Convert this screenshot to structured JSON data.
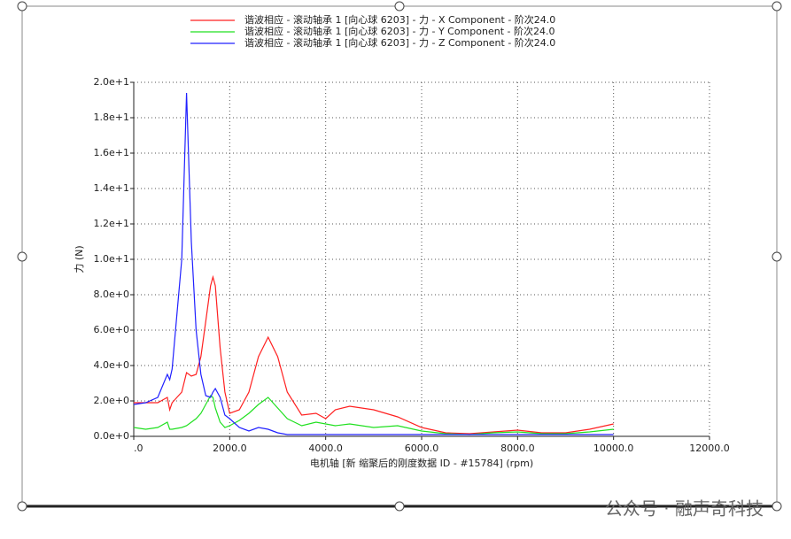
{
  "chart_data": {
    "type": "line",
    "ylabel": "力 (N)",
    "xlabel": "电机轴 [新 缩聚后的刚度数据 ID - #15784] (rpm)",
    "watermark": "公众号 · 融声奇科技",
    "grid": true,
    "x": [
      0,
      250,
      500,
      700,
      750,
      800,
      1000,
      1100,
      1200,
      1300,
      1400,
      1500,
      1600,
      1650,
      1700,
      1800,
      1900,
      2000,
      2200,
      2400,
      2600,
      2800,
      3000,
      3200,
      3500,
      3800,
      4000,
      4200,
      4500,
      5000,
      5500,
      6000,
      6500,
      7000,
      7500,
      8000,
      8500,
      9000,
      9500,
      10000
    ],
    "series": [
      {
        "name": "谐波相应 - 滚动轴承 1 [向心球 6203] - 力 - X Component - 阶次24.0",
        "color": "#ff2020",
        "values": [
          1.9,
          1.9,
          1.9,
          2.2,
          1.5,
          1.9,
          2.5,
          3.6,
          3.4,
          3.5,
          4.5,
          6.5,
          8.5,
          9.0,
          8.5,
          5.0,
          2.5,
          1.3,
          1.5,
          2.5,
          4.5,
          5.6,
          4.5,
          2.5,
          1.2,
          1.3,
          1.0,
          1.5,
          1.7,
          1.5,
          1.1,
          0.5,
          0.2,
          0.15,
          0.25,
          0.35,
          0.2,
          0.2,
          0.4,
          0.7
        ]
      },
      {
        "name": "谐波相应 - 滚动轴承 1 [向心球 6203] - 力 - Y Component - 阶次24.0",
        "color": "#20e020",
        "values": [
          0.5,
          0.4,
          0.5,
          0.8,
          0.4,
          0.4,
          0.5,
          0.6,
          0.8,
          1.0,
          1.3,
          1.8,
          2.3,
          2.2,
          1.6,
          0.8,
          0.5,
          0.6,
          0.9,
          1.3,
          1.8,
          2.2,
          1.6,
          1.0,
          0.6,
          0.8,
          0.7,
          0.6,
          0.7,
          0.5,
          0.6,
          0.3,
          0.15,
          0.1,
          0.2,
          0.25,
          0.15,
          0.15,
          0.25,
          0.4
        ]
      },
      {
        "name": "谐波相应 - 滚动轴承 1 [向心球 6203] - 力 - Z Component - 阶次24.0",
        "color": "#2020ff",
        "values": [
          1.8,
          1.9,
          2.2,
          3.5,
          3.2,
          3.8,
          10,
          19.4,
          11,
          6,
          3.5,
          2.3,
          2.2,
          2.5,
          2.7,
          2.2,
          1.2,
          1.0,
          0.5,
          0.3,
          0.5,
          0.4,
          0.2,
          0.1,
          0.1,
          0.1,
          0.1,
          0.1,
          0.1,
          0.1,
          0.1,
          0.1,
          0.1,
          0.1,
          0.1,
          0.1,
          0.1,
          0.1,
          0.1,
          0.1
        ]
      }
    ],
    "xlim": [
      0,
      12000
    ],
    "xticks": [
      {
        "value": 0,
        "label": ".0"
      },
      {
        "value": 2000,
        "label": "2000.0"
      },
      {
        "value": 4000,
        "label": "4000.0"
      },
      {
        "value": 6000,
        "label": "6000.0"
      },
      {
        "value": 8000,
        "label": "8000.0"
      },
      {
        "value": 10000,
        "label": "10000.0"
      },
      {
        "value": 12000,
        "label": "12000.0"
      }
    ],
    "ylim": [
      0,
      20
    ],
    "yticks": [
      {
        "value": 0,
        "label": "0.0e+0"
      },
      {
        "value": 2,
        "label": "2.0e+0"
      },
      {
        "value": 4,
        "label": "4.0e+0"
      },
      {
        "value": 6,
        "label": "6.0e+0"
      },
      {
        "value": 8,
        "label": "8.0e+0"
      },
      {
        "value": 10,
        "label": "1.0e+1"
      },
      {
        "value": 12,
        "label": "1.2e+1"
      },
      {
        "value": 14,
        "label": "1.4e+1"
      },
      {
        "value": 16,
        "label": "1.6e+1"
      },
      {
        "value": 18,
        "label": "1.8e+1"
      },
      {
        "value": 20,
        "label": "2.0e+1"
      }
    ]
  }
}
